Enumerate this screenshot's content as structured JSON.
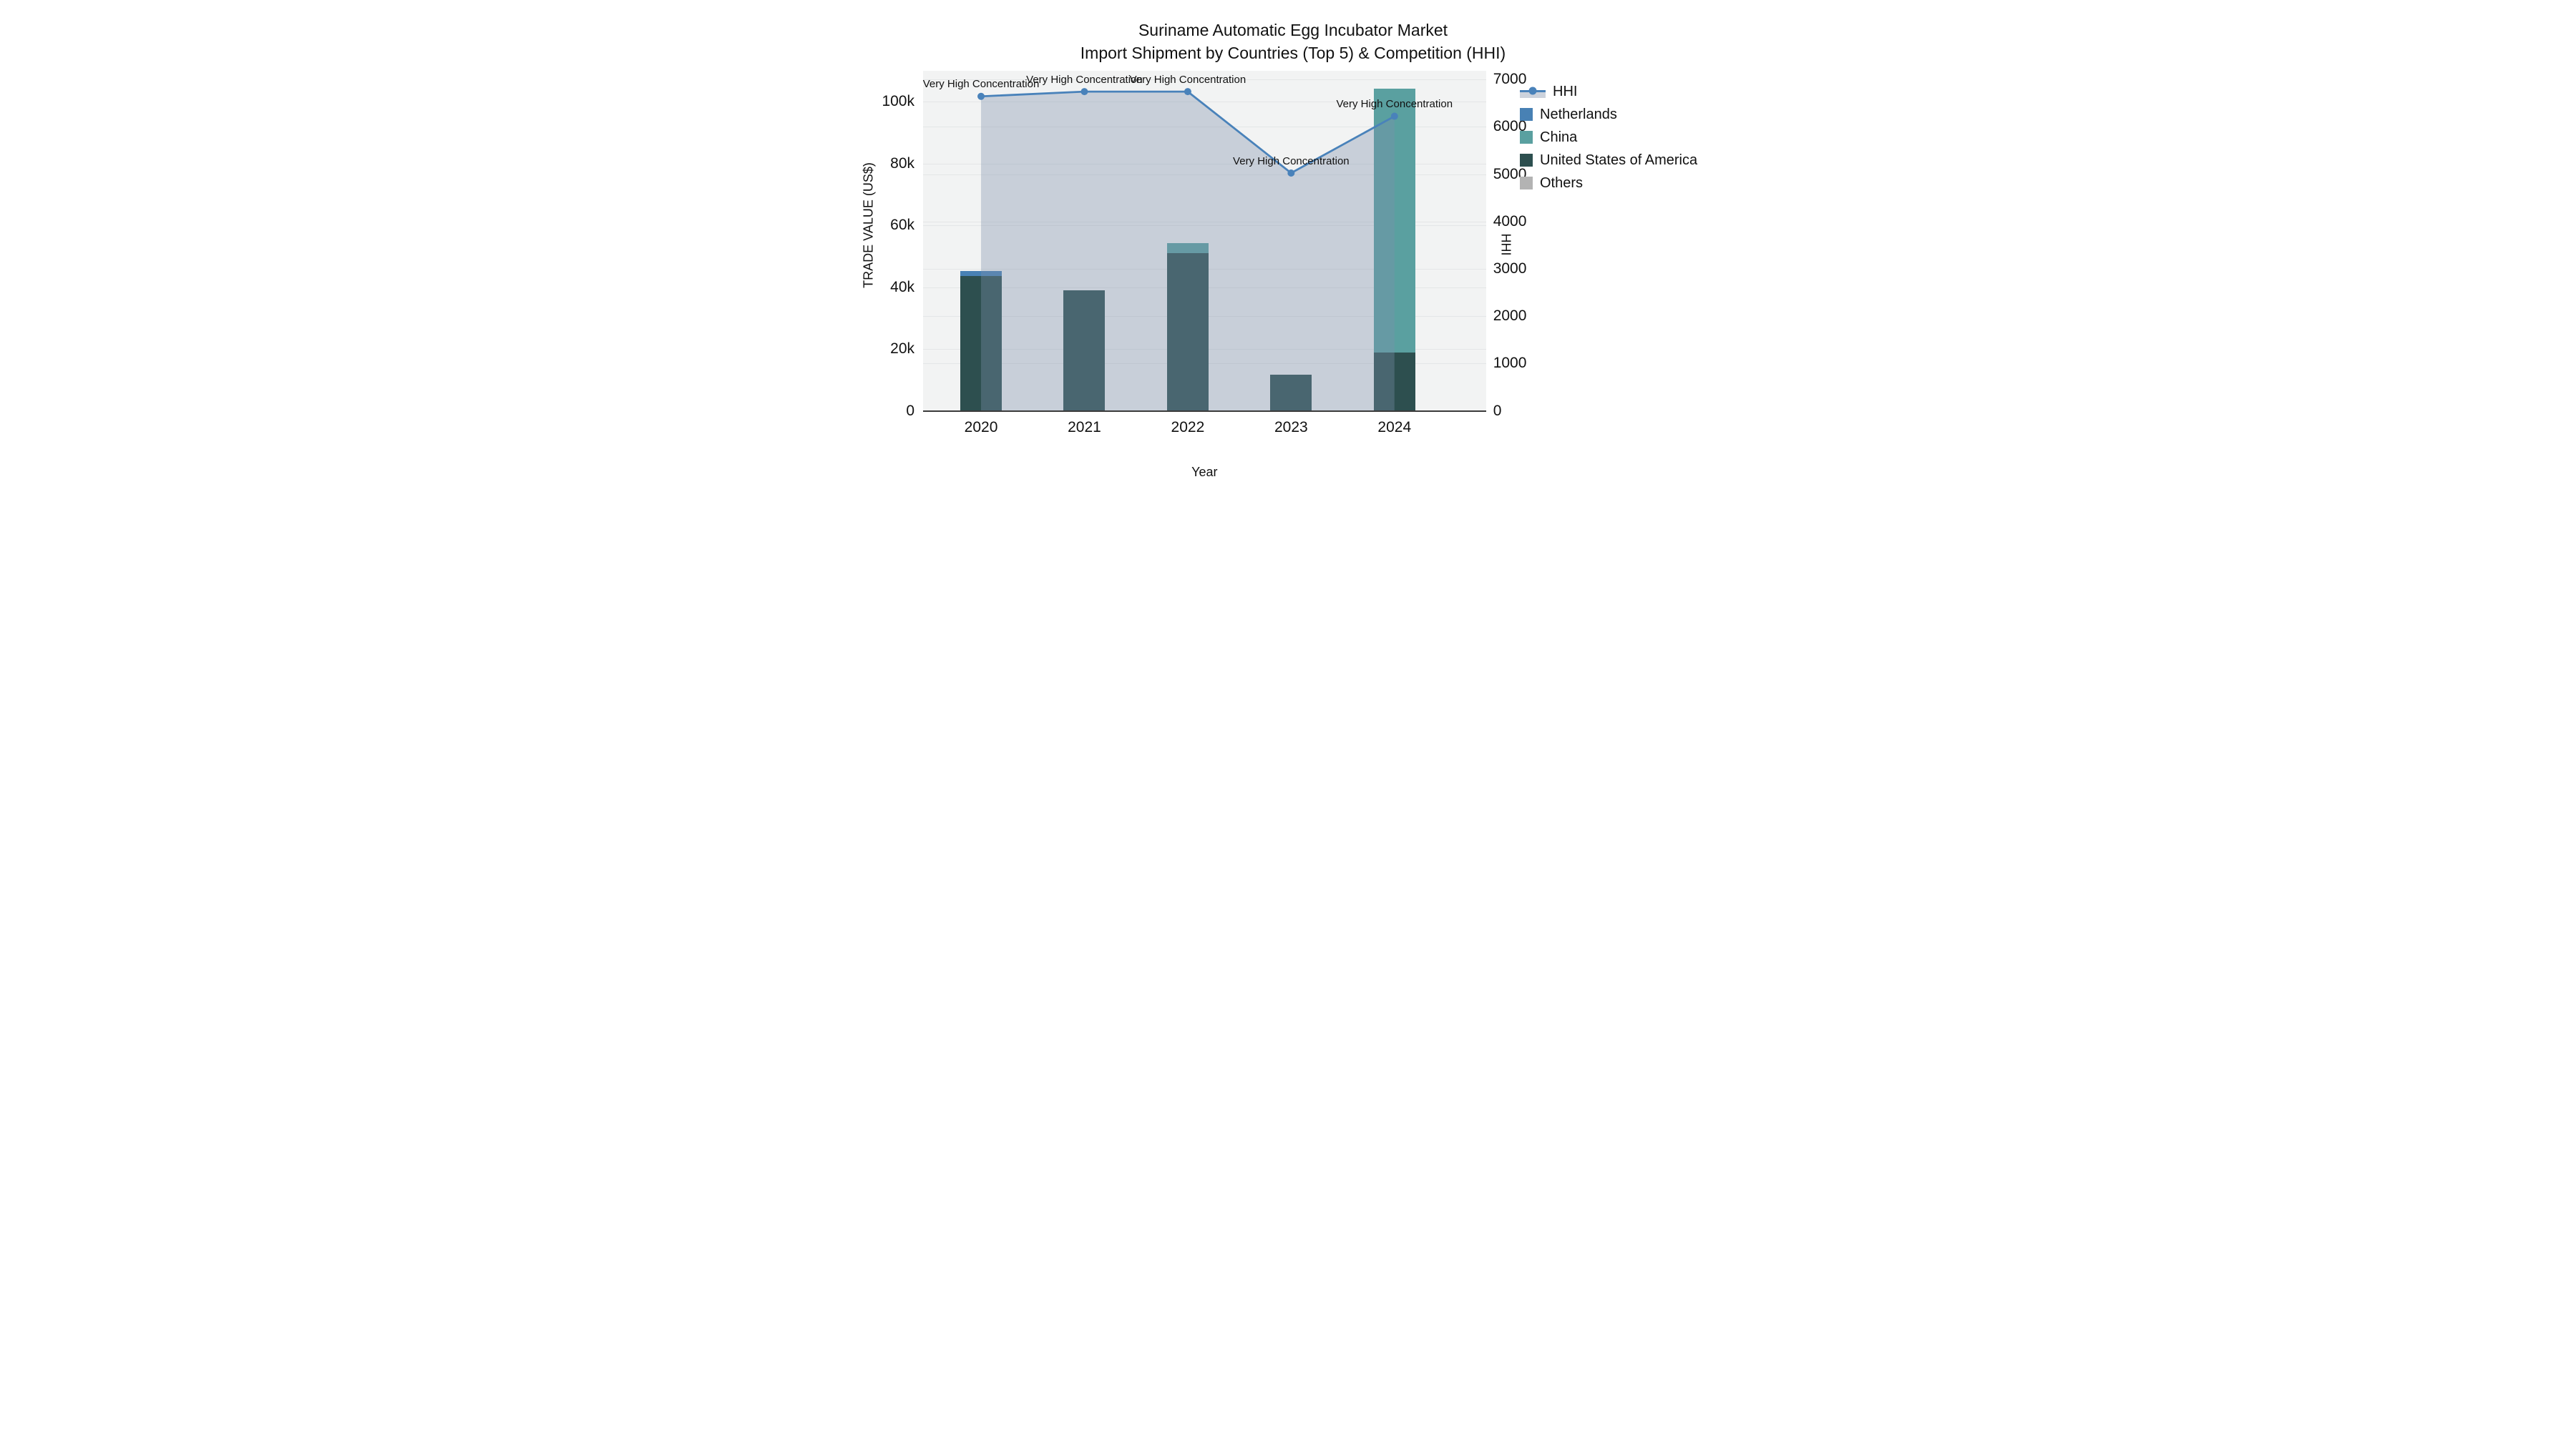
{
  "title": {
    "line1": "Suriname Automatic Egg Incubator Market",
    "line2": "Import Shipment by Countries (Top 5) & Competition (HHI)"
  },
  "axes": {
    "x_label": "Year",
    "y_left_label": "TRADE VALUE (US$)",
    "y_right_label": "HHI"
  },
  "legend": {
    "items": [
      {
        "label": "HHI",
        "type": "line"
      },
      {
        "label": "Netherlands",
        "type": "square"
      },
      {
        "label": "China",
        "type": "square"
      },
      {
        "label": "United States of America",
        "type": "square"
      },
      {
        "label": "Others",
        "type": "square"
      }
    ]
  },
  "colors": {
    "hhi_line": "#4982ba",
    "hhi_fill": "rgba(125,143,172,0.36)",
    "hhi_fill_legend": "#ccd2dc",
    "netherlands": "#4881b4",
    "china": "#5aa0a0",
    "usa": "#2d4f4f",
    "others": "#b3b3b3",
    "plot_background": "#f2f3f3",
    "gridline": "#e4e6e7",
    "axis_line": "#3b3b3b"
  },
  "chart_data": {
    "type": "combo: stacked bar (left axis) + annotated line with area fill (right axis)",
    "categories": [
      "2020",
      "2021",
      "2022",
      "2023",
      "2024"
    ],
    "bar_series": [
      {
        "name": "Netherlands",
        "color": "#4881b4",
        "values": [
          1800,
          0,
          0,
          0,
          0
        ]
      },
      {
        "name": "China",
        "color": "#5aa0a0",
        "values": [
          0,
          0,
          3200,
          0,
          85400
        ]
      },
      {
        "name": "United States of America",
        "color": "#2d4f4f",
        "values": [
          43500,
          39000,
          51000,
          11700,
          18800
        ]
      },
      {
        "name": "Others",
        "color": "#b3b3b3",
        "values": [
          0,
          0,
          0,
          0,
          0
        ]
      }
    ],
    "stack_order": [
      "United States of America",
      "China",
      "Netherlands",
      "Others"
    ],
    "line_series": {
      "name": "HHI",
      "color": "#4982ba",
      "fill": "rgba(125,143,172,0.36)",
      "values": [
        6650,
        6750,
        6750,
        5030,
        6230
      ],
      "annotations": [
        "Very High Concentration",
        "Very High Concentration",
        "Very High Concentration",
        "Very High Concentration",
        "Very High Concentration"
      ]
    },
    "y_left": {
      "label": "TRADE VALUE (US$)",
      "axis_max": 110000,
      "ticks": [
        {
          "value": 0,
          "label": "0"
        },
        {
          "value": 20000,
          "label": "20k"
        },
        {
          "value": 40000,
          "label": "40k"
        },
        {
          "value": 60000,
          "label": "60k"
        },
        {
          "value": 80000,
          "label": "80k"
        },
        {
          "value": 100000,
          "label": "100k"
        }
      ]
    },
    "y_right": {
      "label": "HHI",
      "axis_max": 7190,
      "ticks": [
        {
          "value": 0,
          "label": "0"
        },
        {
          "value": 1000,
          "label": "1000"
        },
        {
          "value": 2000,
          "label": "2000"
        },
        {
          "value": 3000,
          "label": "3000"
        },
        {
          "value": 4000,
          "label": "4000"
        },
        {
          "value": 5000,
          "label": "5000"
        },
        {
          "value": 6000,
          "label": "6000"
        },
        {
          "value": 7000,
          "label": "7000"
        }
      ]
    },
    "grid": true,
    "legend_position": "right of plot, upper area"
  }
}
